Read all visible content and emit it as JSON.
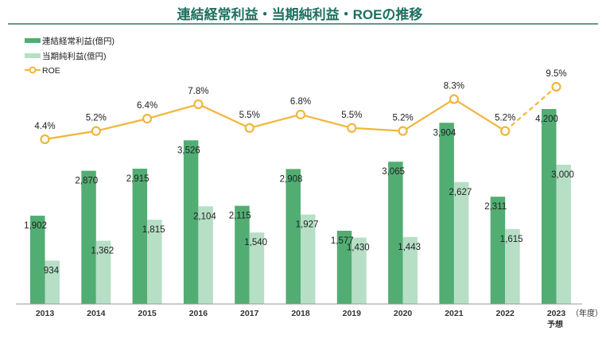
{
  "chart_data": {
    "type": "bar",
    "title": "連結経常利益・当期純利益・ROEの推移",
    "categories": [
      "2013",
      "2014",
      "2015",
      "2016",
      "2017",
      "2018",
      "2019",
      "2020",
      "2021",
      "2022",
      "2023"
    ],
    "x_unit_label": "（年度）",
    "forecast_label": "予想",
    "series": [
      {
        "name": "連結経常利益(億円)",
        "type": "bar",
        "color": "#52ad73",
        "values": [
          1902,
          2870,
          2915,
          3526,
          2115,
          2908,
          1577,
          3065,
          3904,
          2311,
          4200
        ]
      },
      {
        "name": "当期純利益(億円)",
        "type": "bar",
        "color": "#b6dfc6",
        "values": [
          934,
          1362,
          1815,
          2104,
          1540,
          1927,
          1430,
          1443,
          2627,
          1615,
          3000
        ]
      },
      {
        "name": "ROE",
        "type": "line",
        "color": "#f0b63c",
        "values": [
          4.4,
          5.2,
          6.4,
          7.8,
          5.5,
          6.8,
          5.5,
          5.2,
          8.3,
          5.2,
          9.5
        ],
        "labels": [
          "4.4%",
          "5.2%",
          "6.4%",
          "7.8%",
          "5.5%",
          "6.8%",
          "5.5%",
          "5.2%",
          "8.3%",
          "5.2%",
          "9.5%"
        ],
        "forecast_dashed_from_index": 9
      }
    ],
    "bar_labels": {
      "recurring": [
        "1,902",
        "2,870",
        "2,915",
        "3,526",
        "2,115",
        "2,908",
        "1,577",
        "3,065",
        "3,904",
        "2,311",
        "4,200"
      ],
      "net": [
        "934",
        "1,362",
        "1,815",
        "2,104",
        "1,540",
        "1,927",
        "1,430",
        "1,443",
        "2,627",
        "1,615",
        "3,000"
      ]
    },
    "legend_placement": "top-left",
    "grid": false,
    "title_color": "#1d6f5f"
  }
}
